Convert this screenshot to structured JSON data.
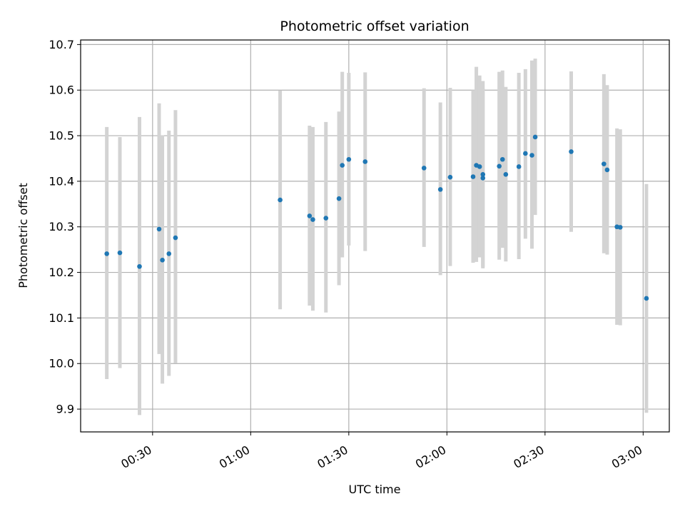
{
  "chart_data": {
    "type": "scatter",
    "title": "Photometric offset variation",
    "xlabel": "UTC time",
    "ylabel": "Photometric offset",
    "grid": true,
    "xlim": [
      "00:08",
      "03:08"
    ],
    "ylim": [
      9.85,
      10.71
    ],
    "x_ticks": [
      "00:30",
      "01:00",
      "01:30",
      "02:00",
      "02:30",
      "03:00"
    ],
    "y_ticks": [
      "9.9",
      "10.0",
      "10.1",
      "10.2",
      "10.3",
      "10.4",
      "10.5",
      "10.6",
      "10.7"
    ],
    "marker_color": "#1f77b4",
    "errorbar_color": "#d3d3d3",
    "points": [
      {
        "x": "00:16",
        "y": 10.241,
        "low": 9.966,
        "high": 10.519
      },
      {
        "x": "00:20",
        "y": 10.243,
        "low": 9.99,
        "high": 10.497
      },
      {
        "x": "00:26",
        "y": 10.213,
        "low": 9.887,
        "high": 10.541
      },
      {
        "x": "00:32",
        "y": 10.295,
        "low": 10.021,
        "high": 10.571
      },
      {
        "x": "00:33",
        "y": 10.227,
        "low": 9.956,
        "high": 10.501
      },
      {
        "x": "00:35",
        "y": 10.241,
        "low": 9.973,
        "high": 10.511
      },
      {
        "x": "00:37",
        "y": 10.276,
        "low": 10.001,
        "high": 10.556
      },
      {
        "x": "01:09",
        "y": 10.359,
        "low": 10.119,
        "high": 10.599
      },
      {
        "x": "01:18",
        "y": 10.324,
        "low": 10.127,
        "high": 10.522
      },
      {
        "x": "01:19",
        "y": 10.316,
        "low": 10.116,
        "high": 10.519
      },
      {
        "x": "01:23",
        "y": 10.319,
        "low": 10.112,
        "high": 10.53
      },
      {
        "x": "01:27",
        "y": 10.362,
        "low": 10.172,
        "high": 10.553
      },
      {
        "x": "01:28",
        "y": 10.435,
        "low": 10.233,
        "high": 10.64
      },
      {
        "x": "01:30",
        "y": 10.448,
        "low": 10.259,
        "high": 10.638
      },
      {
        "x": "01:35",
        "y": 10.443,
        "low": 10.247,
        "high": 10.639
      },
      {
        "x": "01:53",
        "y": 10.429,
        "low": 10.256,
        "high": 10.604
      },
      {
        "x": "01:58",
        "y": 10.382,
        "low": 10.194,
        "high": 10.573
      },
      {
        "x": "02:01",
        "y": 10.409,
        "low": 10.214,
        "high": 10.605
      },
      {
        "x": "02:08",
        "y": 10.41,
        "low": 10.221,
        "high": 10.6
      },
      {
        "x": "02:09",
        "y": 10.435,
        "low": 10.223,
        "high": 10.651
      },
      {
        "x": "02:10",
        "y": 10.432,
        "low": 10.233,
        "high": 10.632
      },
      {
        "x": "02:11",
        "y": 10.407,
        "low": 10.209,
        "high": 10.604
      },
      {
        "x": "02:11",
        "y": 10.415,
        "low": 10.212,
        "high": 10.62
      },
      {
        "x": "02:16",
        "y": 10.433,
        "low": 10.228,
        "high": 10.64
      },
      {
        "x": "02:17",
        "y": 10.448,
        "low": 10.254,
        "high": 10.643
      },
      {
        "x": "02:18",
        "y": 10.415,
        "low": 10.224,
        "high": 10.607
      },
      {
        "x": "02:22",
        "y": 10.432,
        "low": 10.229,
        "high": 10.638
      },
      {
        "x": "02:24",
        "y": 10.461,
        "low": 10.274,
        "high": 10.646
      },
      {
        "x": "02:26",
        "y": 10.457,
        "low": 10.252,
        "high": 10.665
      },
      {
        "x": "02:27",
        "y": 10.497,
        "low": 10.326,
        "high": 10.669
      },
      {
        "x": "02:38",
        "y": 10.465,
        "low": 10.289,
        "high": 10.641
      },
      {
        "x": "02:48",
        "y": 10.438,
        "low": 10.242,
        "high": 10.635
      },
      {
        "x": "02:49",
        "y": 10.425,
        "low": 10.239,
        "high": 10.611
      },
      {
        "x": "02:52",
        "y": 10.3,
        "low": 10.085,
        "high": 10.516
      },
      {
        "x": "02:53",
        "y": 10.299,
        "low": 10.084,
        "high": 10.514
      },
      {
        "x": "03:01",
        "y": 10.143,
        "low": 9.892,
        "high": 10.394
      }
    ]
  }
}
